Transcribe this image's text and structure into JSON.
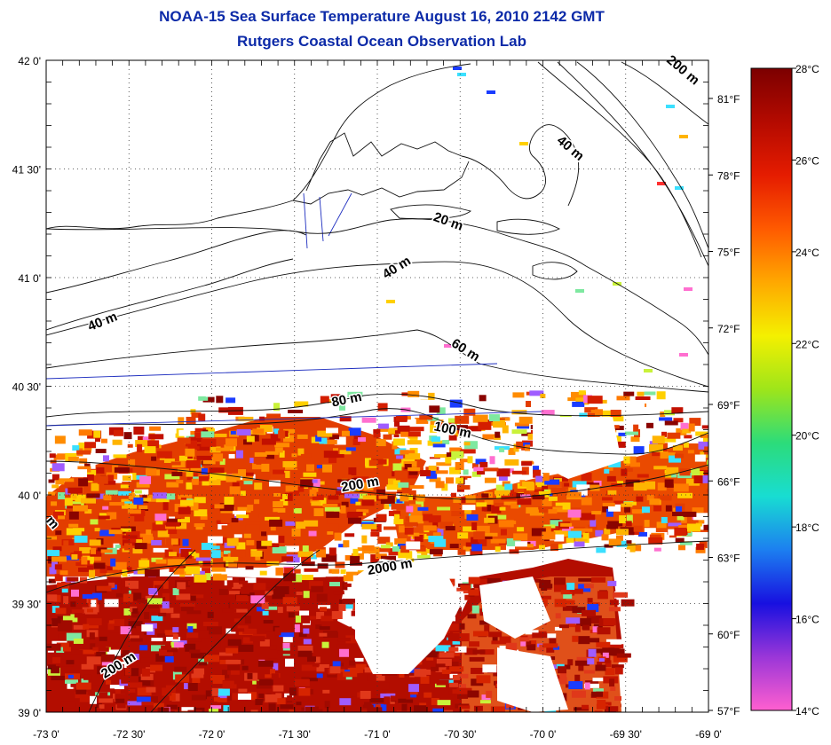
{
  "title": "NOAA-15 Sea Surface Temperature August 16, 2010 2142 GMT",
  "subtitle": "Rutgers Coastal Ocean Observation Lab",
  "map": {
    "lat_ticks": [
      "42 0'",
      "41 30'",
      "41 0'",
      "40 30'",
      "40 0'",
      "39 30'",
      "39 0'"
    ],
    "lon_ticks": [
      "-73 0'",
      "-72 30'",
      "-72 0'",
      "-71 30'",
      "-71 0'",
      "-70 30'",
      "-70 0'",
      "-69 30'",
      "-69 0'"
    ],
    "lat_range": [
      39.0,
      42.0
    ],
    "lon_range": [
      -73.0,
      -69.0
    ],
    "fahrenheit_ticks": [
      "81°F",
      "78°F",
      "75°F",
      "72°F",
      "69°F",
      "66°F",
      "63°F",
      "60°F",
      "57°F"
    ],
    "grid": "dotted",
    "contour_labels": [
      {
        "text": "200 m",
        "lon": -69.17,
        "lat": 41.94,
        "angle": 40
      },
      {
        "text": "40 m",
        "lon": -69.85,
        "lat": 41.58,
        "angle": 40
      },
      {
        "text": "20 m",
        "lon": -70.58,
        "lat": 41.24,
        "angle": 20
      },
      {
        "text": "40 m",
        "lon": -70.87,
        "lat": 41.03,
        "angle": -32
      },
      {
        "text": "40 m",
        "lon": -72.65,
        "lat": 40.78,
        "angle": -22
      },
      {
        "text": "60 m",
        "lon": -70.48,
        "lat": 40.65,
        "angle": 32
      },
      {
        "text": "80 m",
        "lon": -71.18,
        "lat": 40.42,
        "angle": -12
      },
      {
        "text": "100 m",
        "lon": -70.55,
        "lat": 40.28,
        "angle": 12
      },
      {
        "text": "200 m",
        "lon": -71.1,
        "lat": 40.03,
        "angle": -10
      },
      {
        "text": "2000 m",
        "lon": -70.92,
        "lat": 39.65,
        "angle": -10
      },
      {
        "text": "m",
        "lon": -72.98,
        "lat": 39.86,
        "angle": 50
      },
      {
        "text": "200 m",
        "lon": -72.55,
        "lat": 39.2,
        "angle": -32
      }
    ]
  },
  "colorbar": {
    "labels": [
      "28°C",
      "26°C",
      "24°C",
      "22°C",
      "20°C",
      "18°C",
      "16°C",
      "14°C"
    ],
    "min_c": 14,
    "max_c": 28,
    "stops": [
      "#ff5fcf",
      "#9a36d8",
      "#1810e0",
      "#1c7ff0",
      "#18ddd2",
      "#2cdc7a",
      "#9ee51a",
      "#f4f000",
      "#ffa800",
      "#ff5a00",
      "#e51c00",
      "#b40a00",
      "#7c0000"
    ]
  },
  "sst_colors": {
    "main": [
      "#b30d00",
      "#c41500",
      "#a10a00",
      "#d62400",
      "#8c0600",
      "#e0381a"
    ],
    "mixed": [
      "#e33d00",
      "#ff7a00",
      "#ffb400",
      "#d41e00",
      "#8a0400",
      "#ffd000",
      "#ff8c00",
      "#c21000"
    ],
    "speckle": [
      "#ffffff",
      "#ffffff",
      "#c9f23a",
      "#3be0ff",
      "#ff6fd0",
      "#1a3cff",
      "#7ee8a0",
      "#9f5cff"
    ]
  }
}
